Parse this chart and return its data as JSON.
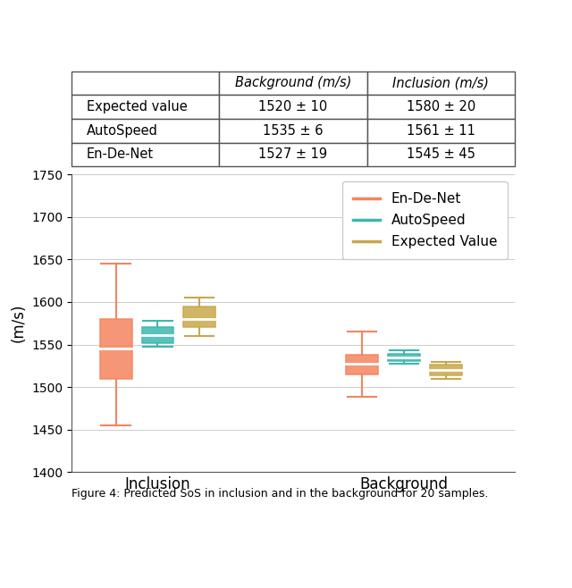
{
  "table_rows": [
    [
      "Expected value",
      "1520 ± 10",
      "1580 ± 20"
    ],
    [
      "AutoSpeed",
      "1535 ± 6",
      "1561 ± 11"
    ],
    [
      "En-De-Net",
      "1527 ± 19",
      "1545 ± 45"
    ]
  ],
  "col_labels": [
    "",
    "Background (m/s)",
    "Inclusion (m/s)"
  ],
  "colors": {
    "En-De-Net": "#F4845F",
    "AutoSpeed": "#3CB8AF",
    "Expected Value": "#C8A84B"
  },
  "ylabel": "(m/s)",
  "ylim": [
    1400,
    1750
  ],
  "yticks": [
    1400,
    1450,
    1500,
    1550,
    1600,
    1650,
    1700,
    1750
  ],
  "groups": [
    "Inclusion",
    "Background"
  ],
  "methods": [
    "En-De-Net",
    "AutoSpeed",
    "Expected Value"
  ],
  "box_data": {
    "En-De-Net": {
      "Inclusion": {
        "med": 1545,
        "q1": 1510,
        "q3": 1580,
        "wlo": 1455,
        "whi": 1645
      },
      "Background": {
        "med": 1527,
        "q1": 1515,
        "q3": 1538,
        "wlo": 1489,
        "whi": 1565
      }
    },
    "AutoSpeed": {
      "Inclusion": {
        "med": 1561,
        "q1": 1552,
        "q3": 1571,
        "wlo": 1547,
        "whi": 1578
      },
      "Background": {
        "med": 1535,
        "q1": 1531,
        "q3": 1539,
        "wlo": 1527,
        "whi": 1543
      }
    },
    "Expected Value": {
      "Inclusion": {
        "med": 1580,
        "q1": 1570,
        "q3": 1595,
        "wlo": 1560,
        "whi": 1605
      },
      "Background": {
        "med": 1520,
        "q1": 1514,
        "q3": 1526,
        "wlo": 1510,
        "whi": 1530
      }
    }
  },
  "group_positions": {
    "Inclusion": 1.0,
    "Background": 2.0
  },
  "offsets": {
    "En-De-Net": -0.17,
    "AutoSpeed": 0.0,
    "Expected Value": 0.17
  },
  "box_width": 0.13,
  "figsize": [
    6.4,
    6.58
  ],
  "dpi": 100,
  "caption": "Figure 4: Predicted SoS in inclusion and in the background for 20 samples.",
  "legend_labels": [
    "En-De-Net",
    "AutoSpeed",
    "Expected Value"
  ]
}
